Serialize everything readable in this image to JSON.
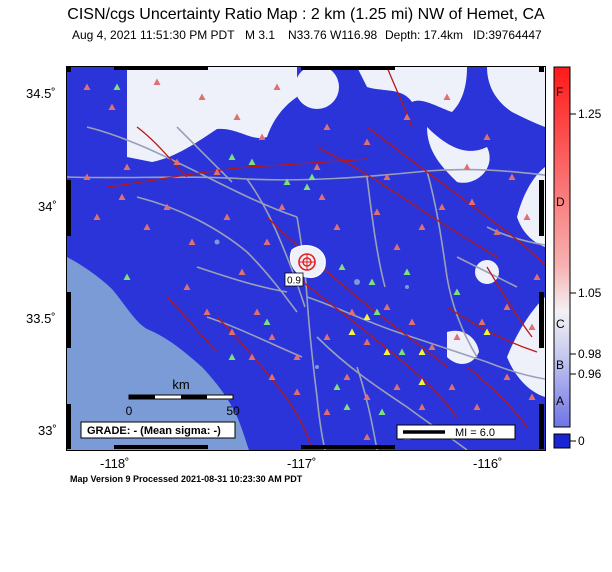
{
  "title": "CISN/cgs Uncertainty Ratio Map : 2 km (1.25 mi) NW of Hemet, CA",
  "subtitle": {
    "date": "Aug  4, 2021 11:51:30 PM PDT",
    "magnitude": "M 3.1",
    "location": "N33.76 W116.98",
    "depth": "Depth: 17.4km",
    "id": "ID:39764447"
  },
  "axes": {
    "y_ticks": [
      "34.5˚",
      "34˚",
      "33.5˚",
      "33˚"
    ],
    "x_ticks": [
      "-118˚",
      "-117˚",
      "-116˚"
    ]
  },
  "map": {
    "epicenter_label": "0.9",
    "scale": {
      "unit": "km",
      "start": "0",
      "end": "50"
    },
    "grade_box": "GRADE: - (Mean sigma: -)",
    "mi_legend": "MI = 6.0",
    "colors": {
      "water": "#7b9bd6",
      "blue_zone": "#2a34d8",
      "white_zone": "#eef0fa",
      "roads": "#9aa0b8",
      "faults": "#b81818",
      "stations_red": "#e07070",
      "stations_green": "#7ee07a",
      "stations_yellow": "#f5f53a"
    }
  },
  "colorbar": {
    "letters": [
      "F",
      "D",
      "C",
      "B",
      "A"
    ],
    "values": [
      "1.25",
      "1.05",
      "0.98",
      "0.96",
      "0"
    ]
  },
  "footer": "Map Version 9 Processed 2021-08-31 10:23:30 AM PDT"
}
